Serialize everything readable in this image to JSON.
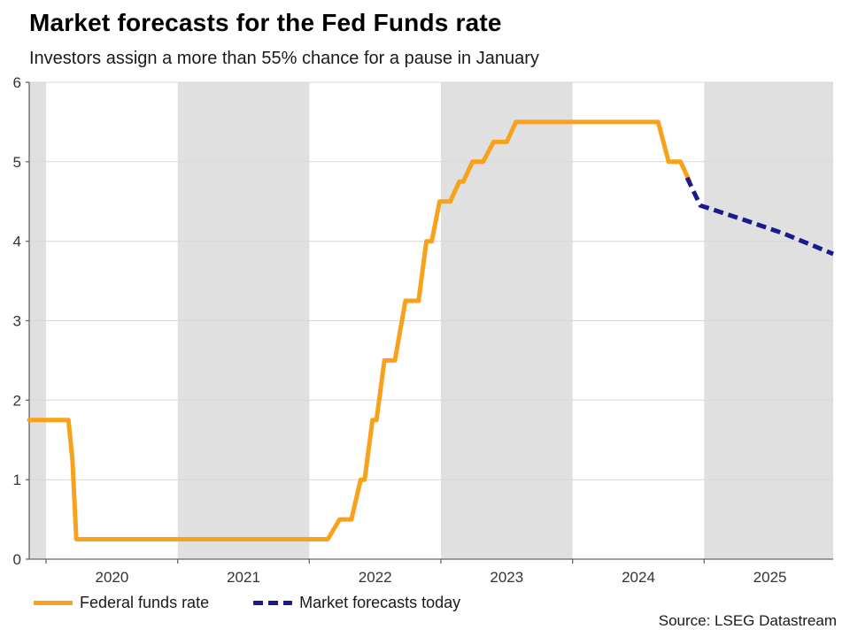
{
  "source": "Source: LSEG Datastream",
  "chart_data": {
    "type": "line",
    "title": "Market forecasts for the Fed Funds rate",
    "subtitle": "Investors assign a more than 55% chance for a pause in January",
    "xlabel": "",
    "ylabel": "",
    "x_range": [
      2019.872,
      2025.98
    ],
    "y_range": [
      0,
      6
    ],
    "y_ticks": [
      0,
      1,
      2,
      3,
      4,
      5,
      6
    ],
    "x_ticks": [
      2020,
      2021,
      2022,
      2023,
      2024,
      2025
    ],
    "x_tick_labels": [
      "2020",
      "2021",
      "2022",
      "2023",
      "2024",
      "2025"
    ],
    "grid": true,
    "legend_position": "bottom-left",
    "band_color": "#E0E0E0",
    "grid_color": "#D8D8D8",
    "axis_color": "#666666",
    "tick_label_color": "#333333",
    "shaded_bands": [
      [
        2019.872,
        2020.0
      ],
      [
        2021.0,
        2022.0
      ],
      [
        2023.0,
        2024.0
      ],
      [
        2025.0,
        2025.98
      ]
    ],
    "series": [
      {
        "name": "Federal funds rate",
        "color": "#F9A11B",
        "dash": null,
        "width": 5,
        "points": [
          [
            2019.872,
            1.75
          ],
          [
            2020.17,
            1.75
          ],
          [
            2020.2,
            1.25
          ],
          [
            2020.23,
            0.25
          ],
          [
            2022.14,
            0.25
          ],
          [
            2022.23,
            0.5
          ],
          [
            2022.32,
            0.5
          ],
          [
            2022.39,
            1.0
          ],
          [
            2022.42,
            1.0
          ],
          [
            2022.48,
            1.75
          ],
          [
            2022.51,
            1.75
          ],
          [
            2022.57,
            2.5
          ],
          [
            2022.65,
            2.5
          ],
          [
            2022.73,
            3.25
          ],
          [
            2022.83,
            3.25
          ],
          [
            2022.89,
            4.0
          ],
          [
            2022.93,
            4.0
          ],
          [
            2022.99,
            4.5
          ],
          [
            2023.07,
            4.5
          ],
          [
            2023.14,
            4.75
          ],
          [
            2023.17,
            4.75
          ],
          [
            2023.24,
            5.0
          ],
          [
            2023.32,
            5.0
          ],
          [
            2023.4,
            5.25
          ],
          [
            2023.5,
            5.25
          ],
          [
            2023.57,
            5.5
          ],
          [
            2024.65,
            5.5
          ],
          [
            2024.73,
            5.0
          ],
          [
            2024.82,
            5.0
          ],
          [
            2024.89,
            4.75
          ]
        ]
      },
      {
        "name": "Market forecasts today",
        "color": "#1A1A8C",
        "dash": "11 6",
        "width": 5,
        "points": [
          [
            2024.87,
            4.8
          ],
          [
            2024.97,
            4.45
          ],
          [
            2025.3,
            4.27
          ],
          [
            2025.6,
            4.1
          ],
          [
            2025.98,
            3.84
          ]
        ]
      }
    ]
  }
}
